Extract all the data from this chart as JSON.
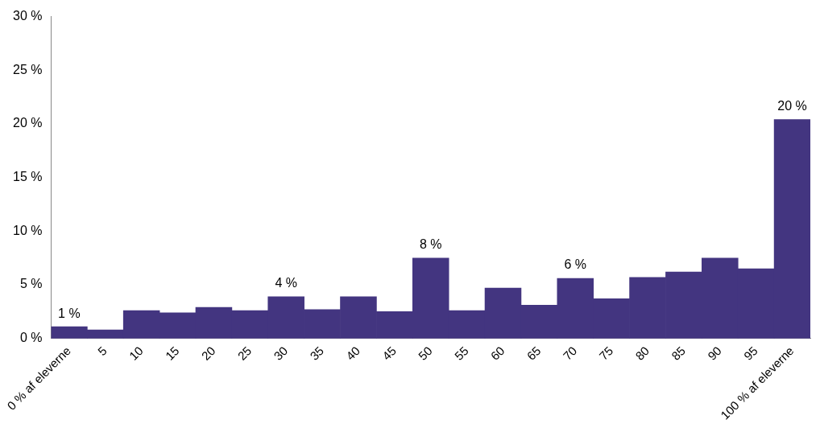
{
  "chart_data": {
    "type": "bar",
    "categories": [
      "0 % af eleverne",
      "5",
      "10",
      "15",
      "20",
      "25",
      "30",
      "35",
      "40",
      "45",
      "50",
      "55",
      "60",
      "65",
      "70",
      "75",
      "80",
      "85",
      "90",
      "95",
      "100 % af eleverne"
    ],
    "values": [
      1.1,
      0.8,
      2.6,
      2.4,
      2.9,
      2.6,
      3.9,
      2.7,
      3.9,
      2.5,
      7.5,
      2.6,
      4.7,
      3.1,
      5.6,
      3.7,
      5.7,
      6.2,
      7.5,
      6.5,
      20.4
    ],
    "value_labels": [
      "1 %",
      null,
      null,
      null,
      null,
      null,
      "4 %",
      null,
      null,
      null,
      "8 %",
      null,
      null,
      null,
      "6 %",
      null,
      null,
      null,
      null,
      null,
      "20 %"
    ],
    "color": "#433580",
    "ylim": [
      0,
      30
    ],
    "yticks": [
      {
        "value": 0,
        "label": "0 %"
      },
      {
        "value": 5,
        "label": "5 %"
      },
      {
        "value": 10,
        "label": "10 %"
      },
      {
        "value": 15,
        "label": "15 %"
      },
      {
        "value": 20,
        "label": "20 %"
      },
      {
        "value": 25,
        "label": "25 %"
      },
      {
        "value": 30,
        "label": "30 %"
      }
    ],
    "grid": false,
    "legend": false
  }
}
